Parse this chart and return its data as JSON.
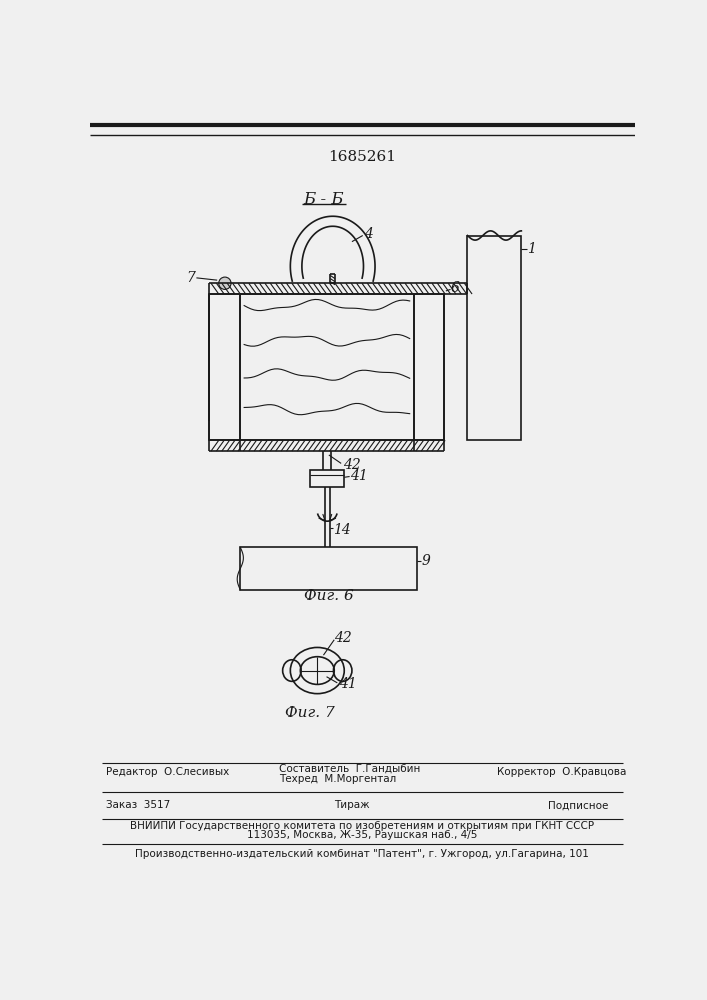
{
  "patent_number": "1685261",
  "section_label": "Б - Б",
  "fig6_label": "Фиг. 6",
  "fig7_label": "Фиг. 7",
  "bg_color": "#f0f0f0",
  "line_color": "#1a1a1a",
  "footer_row1": [
    "Редактор  О.Слесивых",
    "Составитель  Г.Гандыбин",
    "Техред  М.Моргентал",
    "Корректор  О.Кравцова"
  ],
  "footer_row2": [
    "Заказ  3517",
    "Тираж",
    "Подписное"
  ],
  "footer_row3": "ВНИИПИ Государственного комитета по изобретениям и открытиям при ГКНТ СССР",
  "footer_row3b": "113035, Москва, Ж-35, Раушская наб., 4/5",
  "footer_row4": "Производственно-издательский комбинат \"Патент\", г. Ужгород, ул.Гагарина, 101"
}
